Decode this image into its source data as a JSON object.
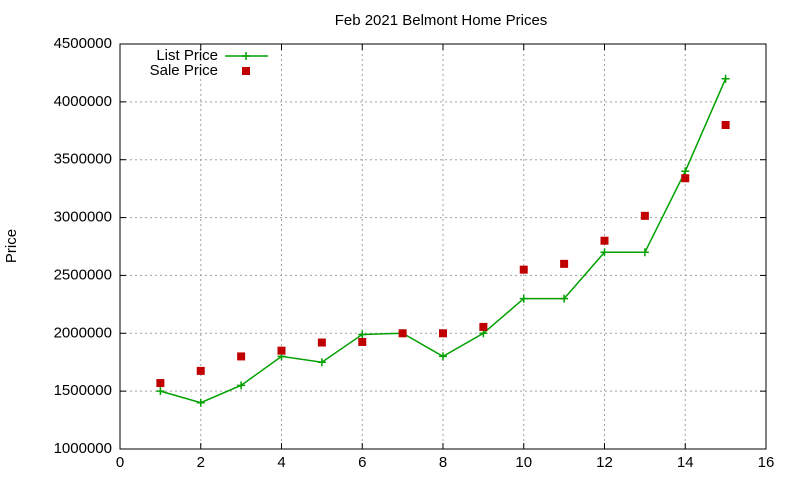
{
  "chart_data": {
    "type": "scatter",
    "title": "Feb 2021 Belmont Home Prices",
    "y_label": "Price",
    "x": [
      1,
      2,
      3,
      4,
      5,
      6,
      7,
      8,
      9,
      10,
      11,
      12,
      13,
      14,
      15
    ],
    "series": [
      {
        "name": "List Price",
        "color": "#00a000",
        "line": true,
        "marker": "plus",
        "values": [
          1500000,
          1400000,
          1550000,
          1800000,
          1750000,
          1990000,
          2000000,
          1800000,
          2000000,
          2300000,
          2300000,
          2700000,
          2700000,
          3400000,
          4200000
        ]
      },
      {
        "name": "Sale Price",
        "color": "#c00000",
        "line": false,
        "marker": "square",
        "values": [
          1570000,
          1675000,
          1800000,
          1850000,
          1920000,
          1925000,
          2000000,
          2000000,
          2055000,
          2550000,
          2600000,
          2800000,
          3015000,
          3340000,
          3800000
        ]
      }
    ],
    "xlim": [
      0,
      16
    ],
    "xticks": [
      0,
      2,
      4,
      6,
      8,
      10,
      12,
      14,
      16
    ],
    "ylim": [
      1000000,
      4500000
    ],
    "yticks": [
      1000000,
      1500000,
      2000000,
      2500000,
      3000000,
      3500000,
      4000000,
      4500000
    ],
    "grid": true,
    "legend": "top-left"
  }
}
